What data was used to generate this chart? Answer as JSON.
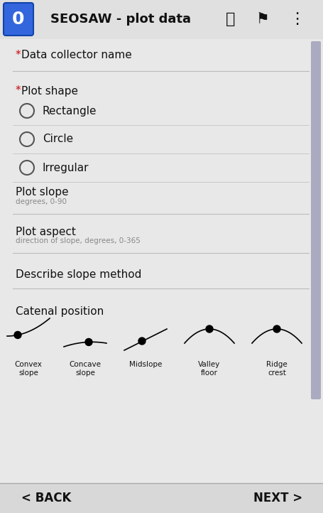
{
  "title": "SEOSAW - plot data",
  "bg_color": "#e8e8e8",
  "header_color": "#f5f5f5",
  "header_bg": "#d0d0d0",
  "nav_bg": "#d8d8d8",
  "form_bg": "#e8e8e8",
  "fields": [
    {
      "label": "Data collector name",
      "required": true,
      "type": "text"
    },
    {
      "label": "Plot shape",
      "required": true,
      "type": "radio",
      "options": [
        "Rectangle",
        "Circle",
        "Irregular"
      ]
    },
    {
      "label": "Plot slope",
      "required": false,
      "type": "text",
      "hint": "degrees, 0-90"
    },
    {
      "label": "Plot aspect",
      "required": false,
      "type": "text",
      "hint": "direction of slope, degrees, 0-365"
    },
    {
      "label": "Describe slope method",
      "required": false,
      "type": "text"
    },
    {
      "label": "Catenal position",
      "required": false,
      "type": "image_select"
    }
  ],
  "catenal_options": [
    "Convex\nslope",
    "Concave\nslope",
    "Midslope",
    "Valley\nfloor",
    "Ridge\ncrest"
  ],
  "back_text": "< BACK",
  "next_text": "NEXT >",
  "scrollbar_color": "#9090b0",
  "line_color": "#bbbbbb",
  "star_color": "#cc0000",
  "text_color": "#111111",
  "hint_color": "#888888",
  "radio_color": "#555555",
  "header_text_color": "#111111",
  "icon_blue": "#2255cc",
  "app_icon_color": "#3366dd"
}
